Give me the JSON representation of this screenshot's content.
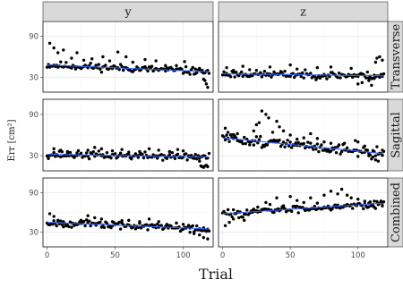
{
  "chart_data": {
    "type": "scatter",
    "xlabel": "Trial",
    "ylabel": "Err [cm²]",
    "xlim": [
      -3,
      122
    ],
    "ylim": [
      8,
      112
    ],
    "x_ticks": [
      0,
      50,
      100
    ],
    "y_ticks": [
      30,
      90
    ],
    "columns": [
      "y",
      "z"
    ],
    "rows": [
      "Transverse",
      "Sagittal",
      "Combined"
    ],
    "grid": true,
    "trend_color": "#3366ff",
    "point_color": "#000000",
    "panels": [
      {
        "column": "y",
        "row": "Transverse",
        "trend": [
          48,
          38
        ],
        "seed": 11,
        "points": [
          [
            2,
            80
          ],
          [
            5,
            73
          ],
          [
            8,
            66
          ],
          [
            12,
            70
          ],
          [
            18,
            58
          ],
          [
            22,
            66
          ],
          [
            27,
            55
          ],
          [
            33,
            57
          ],
          [
            41,
            60
          ],
          [
            46,
            54
          ],
          [
            52,
            67
          ],
          [
            58,
            60
          ],
          [
            63,
            52
          ],
          [
            72,
            56
          ],
          [
            80,
            54
          ],
          [
            87,
            47
          ],
          [
            95,
            47
          ],
          [
            101,
            53
          ],
          [
            109,
            42
          ],
          [
            114,
            40
          ],
          [
            115,
            27
          ],
          [
            116,
            25
          ],
          [
            117,
            20
          ],
          [
            118,
            15
          ]
        ]
      },
      {
        "column": "z",
        "row": "Transverse",
        "trend": [
          35,
          32
        ],
        "seed": 23,
        "points": [
          [
            3,
            44
          ],
          [
            8,
            40
          ],
          [
            15,
            46
          ],
          [
            20,
            41
          ],
          [
            35,
            45
          ],
          [
            50,
            48
          ],
          [
            55,
            42
          ],
          [
            70,
            44
          ],
          [
            80,
            45
          ],
          [
            95,
            43
          ],
          [
            100,
            20
          ],
          [
            103,
            22
          ],
          [
            108,
            25
          ],
          [
            110,
            18
          ],
          [
            112,
            28
          ],
          [
            113,
            52
          ],
          [
            114,
            58
          ],
          [
            116,
            60
          ],
          [
            118,
            55
          ]
        ]
      },
      {
        "column": "y",
        "row": "Sagittal",
        "trend": [
          32,
          28
        ],
        "seed": 37,
        "points": [
          [
            5,
            40
          ],
          [
            10,
            38
          ],
          [
            15,
            36
          ],
          [
            22,
            34
          ],
          [
            30,
            38
          ],
          [
            35,
            42
          ],
          [
            40,
            40
          ],
          [
            48,
            37
          ],
          [
            55,
            39
          ],
          [
            60,
            35
          ],
          [
            68,
            36
          ],
          [
            75,
            40
          ],
          [
            82,
            38
          ],
          [
            90,
            36
          ],
          [
            96,
            39
          ],
          [
            100,
            37
          ],
          [
            104,
            30
          ],
          [
            108,
            28
          ],
          [
            112,
            22
          ],
          [
            113,
            15
          ],
          [
            114,
            14
          ],
          [
            115,
            13
          ],
          [
            116,
            15
          ],
          [
            117,
            16
          ],
          [
            118,
            14
          ]
        ]
      },
      {
        "column": "z",
        "row": "Sagittal",
        "trend": [
          56,
          33
        ],
        "seed": 51,
        "points": [
          [
            2,
            70
          ],
          [
            4,
            64
          ],
          [
            6,
            60
          ],
          [
            8,
            55
          ],
          [
            11,
            62
          ],
          [
            14,
            50
          ],
          [
            20,
            50
          ],
          [
            23,
            66
          ],
          [
            25,
            75
          ],
          [
            27,
            78
          ],
          [
            29,
            95
          ],
          [
            32,
            90
          ],
          [
            34,
            85
          ],
          [
            37,
            64
          ],
          [
            40,
            80
          ],
          [
            42,
            72
          ],
          [
            45,
            66
          ],
          [
            50,
            60
          ],
          [
            55,
            54
          ],
          [
            60,
            56
          ],
          [
            65,
            62
          ],
          [
            70,
            55
          ],
          [
            75,
            50
          ],
          [
            80,
            48
          ],
          [
            90,
            48
          ],
          [
            98,
            52
          ],
          [
            100,
            50
          ],
          [
            105,
            44
          ],
          [
            108,
            30
          ],
          [
            111,
            28
          ],
          [
            113,
            24
          ],
          [
            115,
            22
          ],
          [
            118,
            38
          ]
        ]
      },
      {
        "column": "y",
        "row": "Combined",
        "trend": [
          45,
          35
        ],
        "seed": 67,
        "points": [
          [
            2,
            58
          ],
          [
            5,
            54
          ],
          [
            8,
            48
          ],
          [
            12,
            46
          ],
          [
            18,
            44
          ],
          [
            25,
            48
          ],
          [
            30,
            55
          ],
          [
            35,
            52
          ],
          [
            40,
            50
          ],
          [
            48,
            46
          ],
          [
            55,
            44
          ],
          [
            60,
            48
          ],
          [
            68,
            46
          ],
          [
            75,
            50
          ],
          [
            82,
            46
          ],
          [
            88,
            42
          ],
          [
            95,
            44
          ],
          [
            100,
            42
          ],
          [
            105,
            30
          ],
          [
            108,
            28
          ],
          [
            112,
            26
          ],
          [
            115,
            22
          ],
          [
            118,
            20
          ]
        ]
      },
      {
        "column": "z",
        "row": "Combined",
        "trend": [
          58,
          74
        ],
        "seed": 83,
        "points": [
          [
            2,
            40
          ],
          [
            5,
            45
          ],
          [
            8,
            50
          ],
          [
            12,
            52
          ],
          [
            16,
            48
          ],
          [
            22,
            60
          ],
          [
            26,
            68
          ],
          [
            32,
            75
          ],
          [
            35,
            72
          ],
          [
            40,
            82
          ],
          [
            45,
            70
          ],
          [
            50,
            84
          ],
          [
            55,
            78
          ],
          [
            60,
            75
          ],
          [
            65,
            82
          ],
          [
            70,
            74
          ],
          [
            75,
            86
          ],
          [
            80,
            92
          ],
          [
            85,
            88
          ],
          [
            88,
            95
          ],
          [
            92,
            86
          ],
          [
            95,
            82
          ],
          [
            100,
            80
          ],
          [
            105,
            77
          ],
          [
            108,
            74
          ],
          [
            110,
            70
          ],
          [
            112,
            68
          ],
          [
            115,
            72
          ],
          [
            118,
            74
          ]
        ]
      }
    ]
  }
}
